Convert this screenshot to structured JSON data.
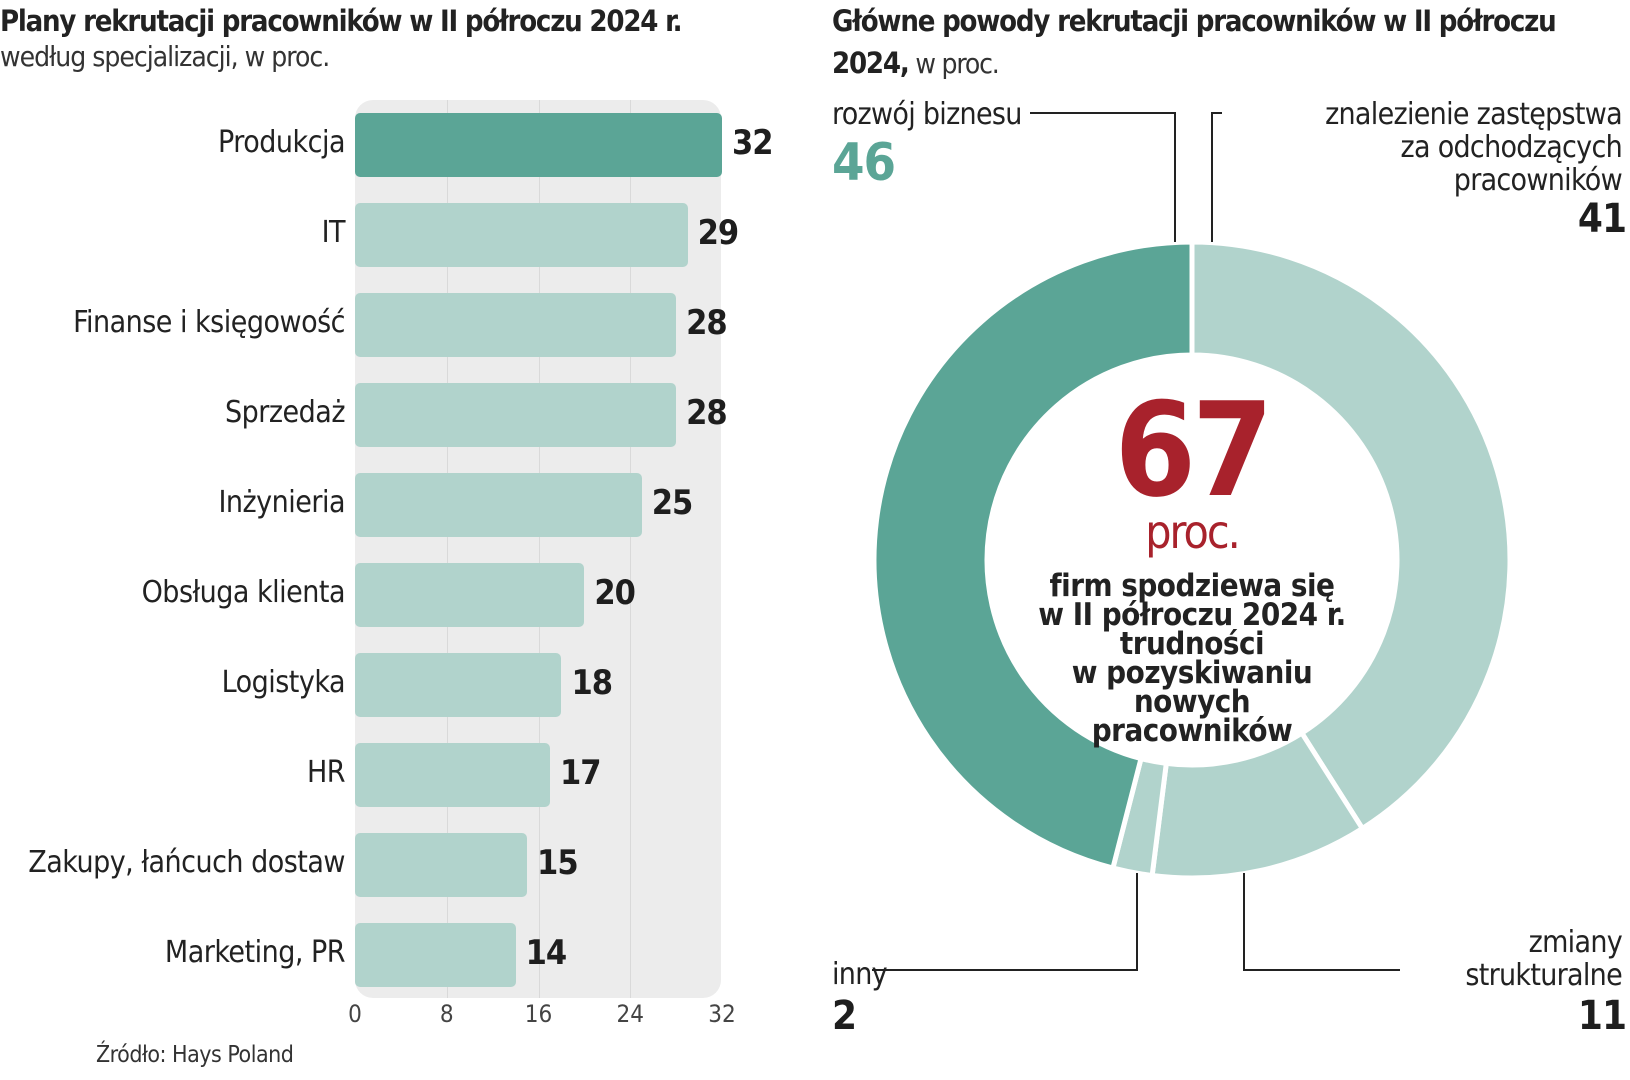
{
  "left": {
    "title": "Plany rekrutacji pracowników w II półroczu 2024 r.",
    "subtitle": "według specjalizacji, w proc.",
    "source": "Źródło: Hays Poland"
  },
  "right": {
    "title_bold": "Główne powody rekrutacji pracowników w II półroczu 2024,",
    "title_rest": " w proc.",
    "center_value": "67",
    "center_unit": "proc.",
    "center_text": [
      "firm spodziewa się",
      "w II półroczu 2024 r.",
      "trudności",
      "w pozyskiwaniu",
      "nowych",
      "pracowników"
    ]
  },
  "colors": {
    "highlight": "#5ba596",
    "light": "#b1d3cc",
    "accent_red": "#a8222c",
    "grid_bg": "#ececec"
  },
  "chart_data": [
    {
      "type": "bar",
      "orientation": "horizontal",
      "title": "Plany rekrutacji pracowników w II półroczu 2024 r.",
      "subtitle": "według specjalizacji, w proc.",
      "categories": [
        "Produkcja",
        "IT",
        "Finanse i księgowość",
        "Sprzedaż",
        "Inżynieria",
        "Obsługa klienta",
        "Logistyka",
        "HR",
        "Zakupy, łańcuch dostaw",
        "Marketing, PR"
      ],
      "values": [
        32,
        29,
        28,
        28,
        25,
        20,
        18,
        17,
        15,
        14
      ],
      "highlight_index": 0,
      "xlim": [
        0,
        32
      ],
      "xticks": [
        0,
        8,
        16,
        24,
        32
      ],
      "grid": true,
      "xlabel": "",
      "ylabel": ""
    },
    {
      "type": "pie",
      "variant": "donut",
      "title": "Główne powody rekrutacji pracowników w II półroczu 2024, w proc.",
      "slices": [
        {
          "label": "znalezienie zastępstwa za odchodzących pracowników",
          "lines": [
            "znalezienie zastępstwa",
            "za odchodzących",
            "pracowników"
          ],
          "value": 41,
          "color": "#b1d3cc"
        },
        {
          "label": "zmiany strukturalne",
          "lines": [
            "zmiany",
            "strukturalne"
          ],
          "value": 11,
          "color": "#b1d3cc"
        },
        {
          "label": "inny",
          "lines": [
            "inny"
          ],
          "value": 2,
          "color": "#b1d3cc"
        },
        {
          "label": "rozwój biznesu",
          "lines": [
            "rozwój biznesu"
          ],
          "value": 46,
          "color": "#5ba596"
        }
      ],
      "start": "top",
      "direction": "clockwise"
    }
  ]
}
